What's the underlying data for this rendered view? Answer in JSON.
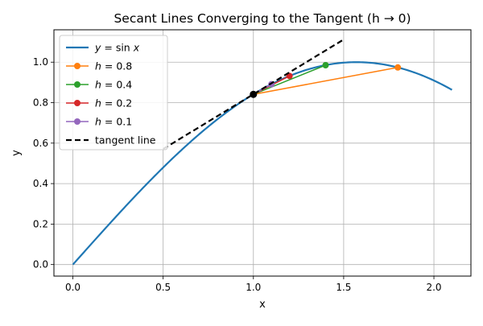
{
  "chart_data": {
    "type": "line",
    "title": "Secant Lines Converging to the Tangent (h → 0)",
    "xlabel": "x",
    "ylabel": "y",
    "xlim": [
      -0.105,
      2.205
    ],
    "ylim": [
      -0.057,
      1.16
    ],
    "xticks": [
      0.0,
      0.5,
      1.0,
      1.5,
      2.0
    ],
    "xtick_labels": [
      "0.0",
      "0.5",
      "1.0",
      "1.5",
      "2.0"
    ],
    "yticks": [
      0.0,
      0.2,
      0.4,
      0.6,
      0.8,
      1.0
    ],
    "ytick_labels": [
      "0.0",
      "0.2",
      "0.4",
      "0.6",
      "0.8",
      "1.0"
    ],
    "grid": true,
    "legend_position": "top-left",
    "curve": {
      "label_math": "y = sin x",
      "function": "sin",
      "x_range": [
        0.0,
        2.1
      ],
      "color": "#1f77b4"
    },
    "secants": [
      {
        "label_var": "h",
        "label_value": "0.8",
        "x": [
          1.0,
          1.8
        ],
        "y": [
          0.841,
          0.974
        ],
        "color": "#ff7f0e"
      },
      {
        "label_var": "h",
        "label_value": "0.4",
        "x": [
          1.0,
          1.4
        ],
        "y": [
          0.841,
          0.985
        ],
        "color": "#2ca02c"
      },
      {
        "label_var": "h",
        "label_value": "0.2",
        "x": [
          1.0,
          1.2
        ],
        "y": [
          0.841,
          0.932
        ],
        "color": "#d62728"
      },
      {
        "label_var": "h",
        "label_value": "0.1",
        "x": [
          1.0,
          1.1
        ],
        "y": [
          0.841,
          0.891
        ],
        "color": "#9467bd"
      }
    ],
    "tangent": {
      "label": "tangent line",
      "x": [
        0.5,
        1.5
      ],
      "y": [
        0.571,
        1.112
      ],
      "color": "#000000",
      "style": "dashed"
    },
    "point": {
      "x": 1.0,
      "y": 0.841,
      "color": "#000000"
    }
  }
}
